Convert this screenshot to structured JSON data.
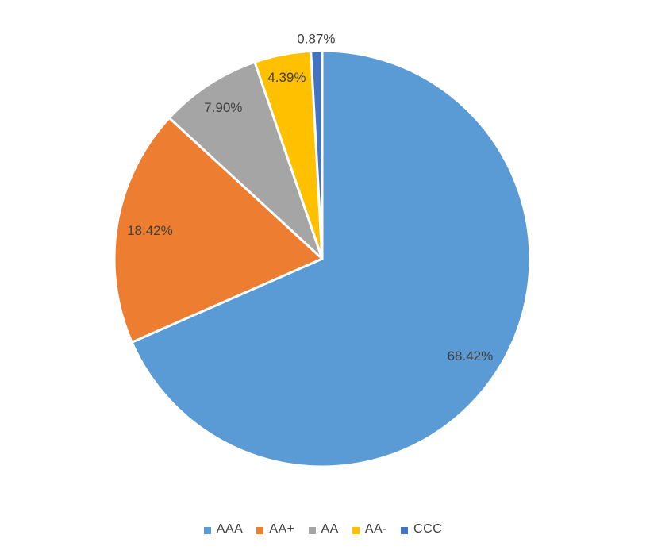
{
  "chart_data": {
    "type": "pie",
    "title": "",
    "categories": [
      "AAA",
      "AA+",
      "AA",
      "AA-",
      "CCC"
    ],
    "values": [
      68.42,
      18.42,
      7.9,
      4.39,
      0.87
    ],
    "data_labels": [
      "68.42%",
      "18.42%",
      "7.90%",
      "4.39%",
      "0.87%"
    ],
    "colors": [
      "#5B9BD5",
      "#ED7D31",
      "#A5A5A5",
      "#FFC000",
      "#4472C4"
    ],
    "start_angle_deg": 0,
    "direction": "clockwise",
    "slice_border_color": "#FFFFFF",
    "label_color": "#404040",
    "background_color": "#FFFFFF",
    "legend": {
      "position": "bottom",
      "entries": [
        "AAA",
        "AA+",
        "AA",
        "AA-",
        "CCC"
      ]
    }
  }
}
